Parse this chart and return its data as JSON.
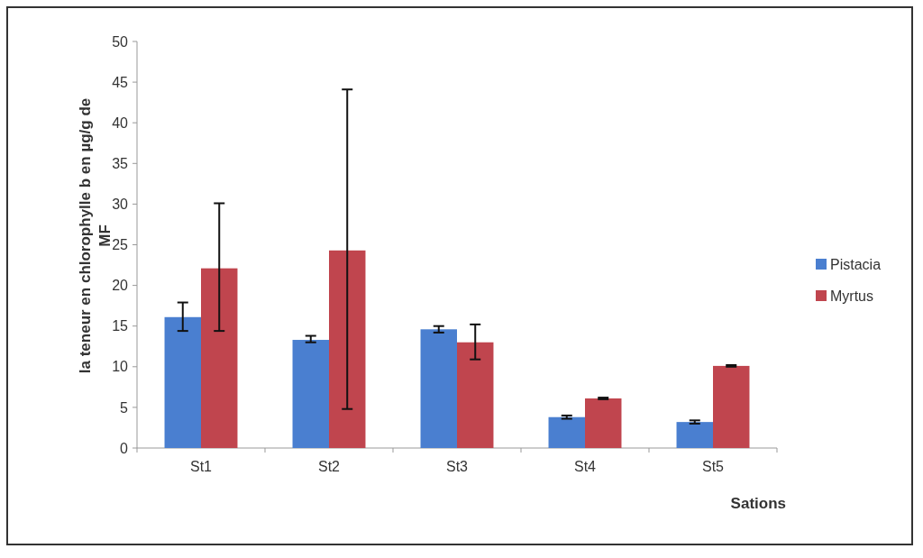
{
  "chart_data": {
    "type": "bar",
    "xlabel": "Sations",
    "ylabel": "la teneur en chlorophylle b en µg/g de MF",
    "categories": [
      "St1",
      "St2",
      "St3",
      "St4",
      "St5"
    ],
    "series": [
      {
        "name": "Pistacia",
        "color": "#4a7fd0",
        "values": [
          16.1,
          13.3,
          14.6,
          3.8,
          3.2
        ],
        "errors": [
          [
            14.4,
            17.9
          ],
          [
            13.0,
            13.8
          ],
          [
            14.2,
            15.0
          ],
          [
            3.6,
            4.0
          ],
          [
            3.0,
            3.4
          ]
        ]
      },
      {
        "name": "Myrtus",
        "color": "#c0454e",
        "values": [
          22.1,
          24.3,
          13.0,
          6.1,
          10.1
        ],
        "errors": [
          [
            14.4,
            30.1
          ],
          [
            4.8,
            44.1
          ],
          [
            10.9,
            15.2
          ],
          [
            6.0,
            6.2
          ],
          [
            10.0,
            10.2
          ]
        ]
      }
    ],
    "ylim": [
      0,
      50
    ],
    "yticks": [
      0,
      5,
      10,
      15,
      20,
      25,
      30,
      35,
      40,
      45,
      50
    ],
    "legend": "right",
    "grid": false
  }
}
